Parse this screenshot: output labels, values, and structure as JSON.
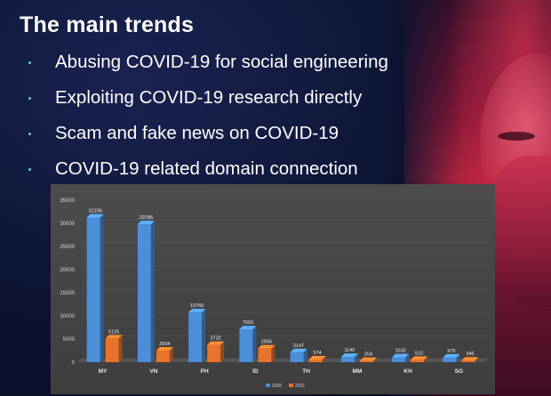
{
  "slide": {
    "title": "The main trends",
    "bullets": [
      "Abusing COVID-19 for social engineering",
      "Exploiting COVID-19 research directly",
      "Scam and fake news on COVID-19",
      "COVID-19 related domain connection"
    ],
    "bullet_color": "#66c6d8"
  },
  "chart_data": {
    "type": "bar",
    "categories": [
      "MY",
      "VN",
      "PH",
      "ID",
      "TH",
      "MM",
      "KH",
      "SG"
    ],
    "series": [
      {
        "name": "2020",
        "values": [
          31236,
          29786,
          10765,
          7093,
          2147,
          1140,
          1033,
          979
        ],
        "color": "#4a8fd8"
      },
      {
        "name": "2021",
        "values": [
          5125,
          2504,
          3732,
          2956,
          574,
          264,
          510,
          346
        ],
        "color": "#e8732a"
      }
    ],
    "ylim": [
      0,
      35000
    ],
    "yticks": [
      0,
      5000,
      10000,
      15000,
      20000,
      25000,
      30000,
      35000
    ],
    "grid": true,
    "legend": "bottom-right",
    "title": "",
    "xlabel": "",
    "ylabel": ""
  }
}
